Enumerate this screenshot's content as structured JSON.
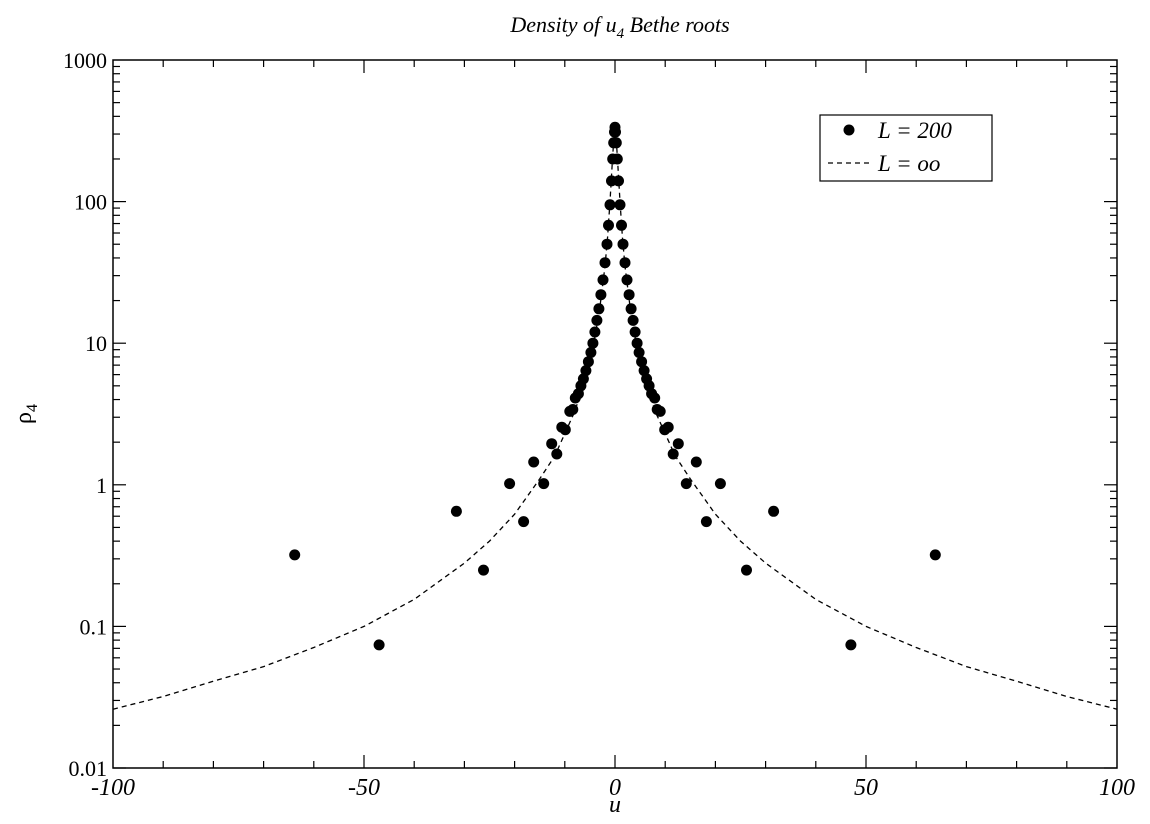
{
  "chart_data": {
    "type": "scatter",
    "title_parts": {
      "prefix": "Density of ",
      "sym": "u",
      "sub": "4",
      "suffix": " Bethe roots"
    },
    "xlabel": "u",
    "ylabel_parts": {
      "sym": "ρ",
      "sub": "4"
    },
    "xlim": [
      -100,
      100
    ],
    "ylim": [
      0.01,
      1000
    ],
    "yscale": "log",
    "grid": false,
    "legend_position": "top-right",
    "x_ticks": [
      {
        "value": -100,
        "label": "-100"
      },
      {
        "value": -50,
        "label": "-50"
      },
      {
        "value": 0,
        "label": "0"
      },
      {
        "value": 50,
        "label": "50"
      },
      {
        "value": 100,
        "label": "100"
      }
    ],
    "y_ticks": [
      {
        "value": 0.01,
        "label": "0.01"
      },
      {
        "value": 0.1,
        "label": "0.1"
      },
      {
        "value": 1,
        "label": "1"
      },
      {
        "value": 10,
        "label": "10"
      },
      {
        "value": 100,
        "label": "100"
      },
      {
        "value": 1000,
        "label": "1000"
      }
    ],
    "series": [
      {
        "name": "L = 200",
        "style": "markers",
        "color": "#000000",
        "points": [
          [
            -63.8,
            0.32
          ],
          [
            -47.0,
            0.074
          ],
          [
            -31.6,
            0.65
          ],
          [
            -26.2,
            0.25
          ],
          [
            -21.0,
            1.02
          ],
          [
            -18.2,
            0.55
          ],
          [
            -16.2,
            1.45
          ],
          [
            -14.2,
            1.02
          ],
          [
            -12.6,
            1.95
          ],
          [
            -11.6,
            1.65
          ],
          [
            -10.6,
            2.55
          ],
          [
            -9.9,
            2.45
          ],
          [
            -9.0,
            3.3
          ],
          [
            -8.4,
            3.4
          ],
          [
            -7.9,
            4.1
          ],
          [
            -7.3,
            4.4
          ],
          [
            -6.8,
            5.0
          ],
          [
            -6.3,
            5.6
          ],
          [
            -5.8,
            6.4
          ],
          [
            -5.3,
            7.4
          ],
          [
            -4.8,
            8.6
          ],
          [
            -4.4,
            10.0
          ],
          [
            -4.0,
            12.0
          ],
          [
            -3.6,
            14.5
          ],
          [
            -3.2,
            17.5
          ],
          [
            -2.8,
            22.0
          ],
          [
            -2.4,
            28.0
          ],
          [
            -2.0,
            37.0
          ],
          [
            -1.6,
            50.0
          ],
          [
            -1.3,
            68.0
          ],
          [
            -1.0,
            95.0
          ],
          [
            -0.7,
            140.0
          ],
          [
            -0.45,
            200.0
          ],
          [
            -0.25,
            260.0
          ],
          [
            -0.1,
            310.0
          ],
          [
            0.0,
            335.0
          ],
          [
            0.1,
            310.0
          ],
          [
            0.25,
            260.0
          ],
          [
            0.45,
            200.0
          ],
          [
            0.7,
            140.0
          ],
          [
            1.0,
            95.0
          ],
          [
            1.3,
            68.0
          ],
          [
            1.6,
            50.0
          ],
          [
            2.0,
            37.0
          ],
          [
            2.4,
            28.0
          ],
          [
            2.8,
            22.0
          ],
          [
            3.2,
            17.5
          ],
          [
            3.6,
            14.5
          ],
          [
            4.0,
            12.0
          ],
          [
            4.4,
            10.0
          ],
          [
            4.8,
            8.6
          ],
          [
            5.3,
            7.4
          ],
          [
            5.8,
            6.4
          ],
          [
            6.3,
            5.6
          ],
          [
            6.8,
            5.0
          ],
          [
            7.3,
            4.4
          ],
          [
            7.9,
            4.1
          ],
          [
            8.4,
            3.4
          ],
          [
            9.0,
            3.3
          ],
          [
            9.9,
            2.45
          ],
          [
            10.6,
            2.55
          ],
          [
            11.6,
            1.65
          ],
          [
            12.6,
            1.95
          ],
          [
            14.2,
            1.02
          ],
          [
            16.2,
            1.45
          ],
          [
            18.2,
            0.55
          ],
          [
            21.0,
            1.02
          ],
          [
            26.2,
            0.25
          ],
          [
            31.6,
            0.65
          ],
          [
            47.0,
            0.074
          ],
          [
            63.8,
            0.32
          ]
        ]
      },
      {
        "name": "L = oo",
        "style": "dashed",
        "color": "#000000",
        "points": [
          [
            -100,
            0.026
          ],
          [
            -90,
            0.032
          ],
          [
            -80,
            0.041
          ],
          [
            -70,
            0.052
          ],
          [
            -60,
            0.071
          ],
          [
            -50,
            0.1
          ],
          [
            -40,
            0.155
          ],
          [
            -30,
            0.28
          ],
          [
            -25,
            0.4
          ],
          [
            -20,
            0.62
          ],
          [
            -15,
            1.1
          ],
          [
            -12,
            1.6
          ],
          [
            -10,
            2.3
          ],
          [
            -8,
            3.3
          ],
          [
            -6,
            5.5
          ],
          [
            -5,
            7.5
          ],
          [
            -4,
            11.0
          ],
          [
            -3,
            18.0
          ],
          [
            -2,
            35.0
          ],
          [
            -1.5,
            55.0
          ],
          [
            -1,
            100.0
          ],
          [
            -0.5,
            200.0
          ],
          [
            -0.2,
            290.0
          ],
          [
            0,
            335.0
          ],
          [
            0.2,
            290.0
          ],
          [
            0.5,
            200.0
          ],
          [
            1,
            100.0
          ],
          [
            1.5,
            55.0
          ],
          [
            2,
            35.0
          ],
          [
            3,
            18.0
          ],
          [
            4,
            11.0
          ],
          [
            5,
            7.5
          ],
          [
            6,
            5.5
          ],
          [
            8,
            3.3
          ],
          [
            10,
            2.3
          ],
          [
            12,
            1.6
          ],
          [
            15,
            1.1
          ],
          [
            20,
            0.62
          ],
          [
            25,
            0.4
          ],
          [
            30,
            0.28
          ],
          [
            40,
            0.155
          ],
          [
            50,
            0.1
          ],
          [
            60,
            0.071
          ],
          [
            70,
            0.052
          ],
          [
            80,
            0.041
          ],
          [
            90,
            0.032
          ],
          [
            100,
            0.026
          ]
        ]
      }
    ]
  }
}
